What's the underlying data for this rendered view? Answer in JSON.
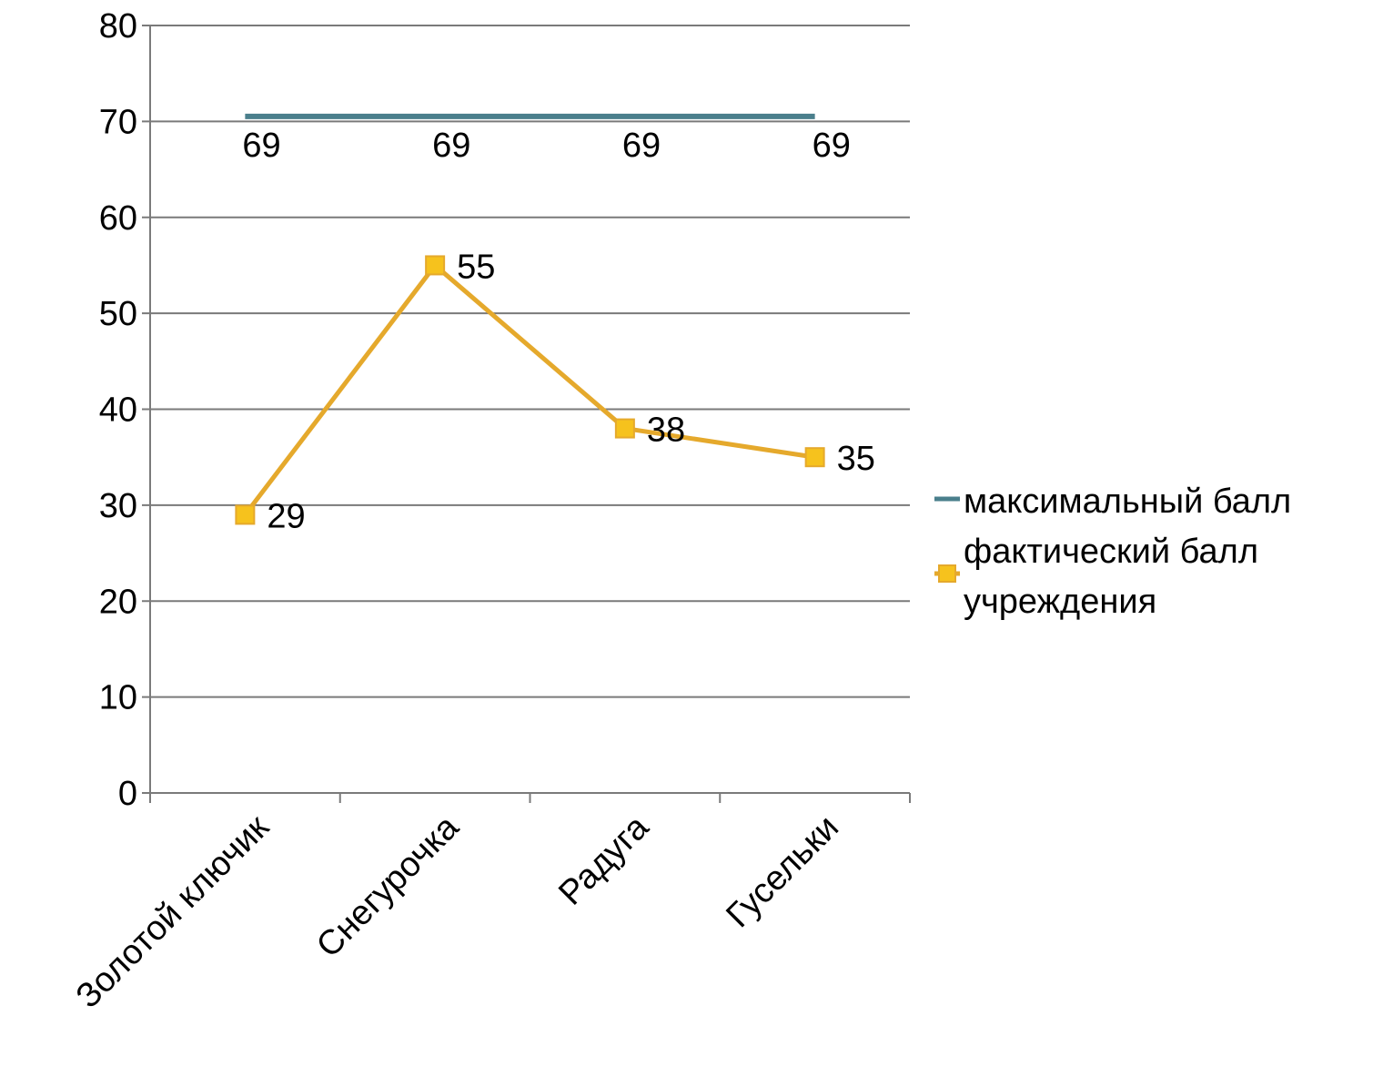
{
  "chart_data": {
    "type": "line",
    "categories": [
      "Золотой ключик",
      "Снегурочка",
      "Радуга",
      "Гусельки"
    ],
    "series": [
      {
        "name": "максимальный балл",
        "values": [
          69,
          69,
          69,
          69
        ],
        "labels": [
          "69",
          "69",
          "69",
          "69"
        ],
        "color": "#4a7f8c",
        "marker": "none"
      },
      {
        "name": "фактический балл учреждения",
        "values": [
          29,
          55,
          38,
          35
        ],
        "labels": [
          "29",
          "55",
          "38",
          "35"
        ],
        "color": "#e5a92c",
        "marker": "square",
        "marker_color": "#f6c21d"
      }
    ],
    "title": "",
    "xlabel": "",
    "ylabel": "",
    "ylim": [
      0,
      80
    ],
    "yticks": [
      "0",
      "10",
      "20",
      "30",
      "40",
      "50",
      "60",
      "70",
      "80"
    ],
    "grid": true,
    "legend_position": "right"
  }
}
